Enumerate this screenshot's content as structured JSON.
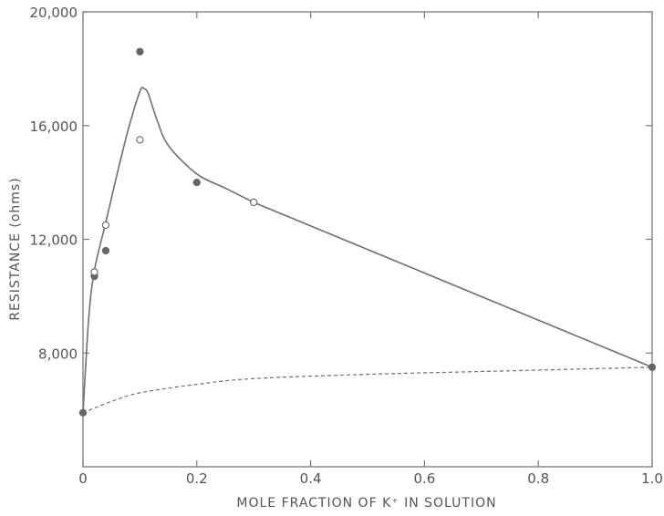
{
  "chart_data": {
    "type": "scatter",
    "title": "",
    "xlabel": "MOLE FRACTION OF K⁺ IN SOLUTION",
    "ylabel": "RESISTANCE  (ohms)",
    "xlim": [
      0,
      1.0
    ],
    "ylim": [
      4000,
      20000
    ],
    "x_ticks": [
      0,
      0.2,
      0.4,
      0.6,
      0.8,
      1.0
    ],
    "x_tick_labels": [
      "0",
      "0.2",
      "0.4",
      "0.6",
      "0.8",
      "1.0"
    ],
    "y_ticks": [
      8000,
      12000,
      16000,
      20000
    ],
    "y_tick_labels": [
      "8,000",
      "12,000",
      "16,000",
      "20,000"
    ],
    "grid": false,
    "legend": "none",
    "series": [
      {
        "marker": "filled-circle",
        "color": "#666666",
        "points": [
          {
            "x": 0.0,
            "y": 5900
          },
          {
            "x": 0.02,
            "y": 10700
          },
          {
            "x": 0.04,
            "y": 11600
          },
          {
            "x": 0.1,
            "y": 18600
          },
          {
            "x": 0.2,
            "y": 14000
          },
          {
            "x": 1.0,
            "y": 7500
          }
        ]
      },
      {
        "marker": "open-circle",
        "color": "#666666",
        "points": [
          {
            "x": 0.02,
            "y": 10850
          },
          {
            "x": 0.04,
            "y": 12500
          },
          {
            "x": 0.1,
            "y": 15500
          },
          {
            "x": 0.3,
            "y": 13300
          }
        ]
      },
      {
        "marker": "solid-line",
        "color": "#707070",
        "points": [
          {
            "x": 0.0,
            "y": 5900
          },
          {
            "x": 0.01,
            "y": 9200
          },
          {
            "x": 0.02,
            "y": 10900
          },
          {
            "x": 0.04,
            "y": 12600
          },
          {
            "x": 0.06,
            "y": 14300
          },
          {
            "x": 0.08,
            "y": 15900
          },
          {
            "x": 0.1,
            "y": 17200
          },
          {
            "x": 0.107,
            "y": 17300
          },
          {
            "x": 0.115,
            "y": 17100
          },
          {
            "x": 0.13,
            "y": 16200
          },
          {
            "x": 0.15,
            "y": 15300
          },
          {
            "x": 0.2,
            "y": 14300
          },
          {
            "x": 0.25,
            "y": 13800
          },
          {
            "x": 0.3,
            "y": 13300
          },
          {
            "x": 1.0,
            "y": 7500
          }
        ]
      },
      {
        "marker": "dashed-line",
        "color": "#707070",
        "points": [
          {
            "x": 0.0,
            "y": 5900
          },
          {
            "x": 0.05,
            "y": 6300
          },
          {
            "x": 0.1,
            "y": 6600
          },
          {
            "x": 0.2,
            "y": 6900
          },
          {
            "x": 0.3,
            "y": 7100
          },
          {
            "x": 0.5,
            "y": 7250
          },
          {
            "x": 0.7,
            "y": 7350
          },
          {
            "x": 1.0,
            "y": 7500
          }
        ]
      }
    ]
  }
}
